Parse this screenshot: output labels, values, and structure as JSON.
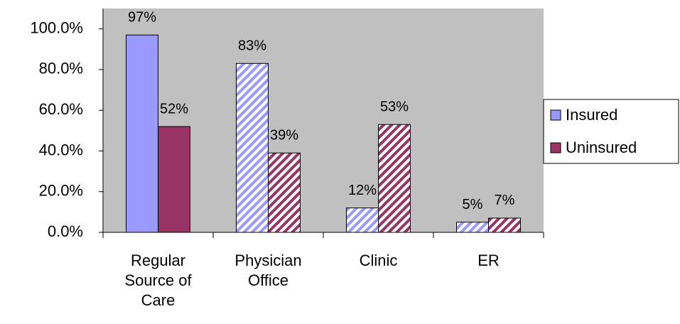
{
  "chart_data": {
    "type": "bar",
    "categories": [
      "Regular Source of Care",
      "Physician Office",
      "Clinic",
      "ER"
    ],
    "series": [
      {
        "name": "Insured",
        "color": "#9999ff",
        "pattern": [
          "solid",
          "hatch",
          "hatch",
          "hatch"
        ],
        "values": [
          97,
          83,
          12,
          5
        ],
        "value_labels": [
          "97%",
          "83%",
          "12%",
          "5%"
        ]
      },
      {
        "name": "Uninsured",
        "color": "#993366",
        "pattern": [
          "solid",
          "hatch",
          "hatch",
          "hatch"
        ],
        "values": [
          52,
          39,
          53,
          7
        ],
        "value_labels": [
          "52%",
          "39%",
          "53%",
          "7%"
        ]
      }
    ],
    "ylim": [
      0,
      110
    ],
    "yticks": [
      {
        "value": 0,
        "label": "0.0%"
      },
      {
        "value": 20,
        "label": "20.0%"
      },
      {
        "value": 40,
        "label": "40.0%"
      },
      {
        "value": 60,
        "label": "60.0%"
      },
      {
        "value": 80,
        "label": "80.0%"
      },
      {
        "value": 100,
        "label": "100.0%"
      }
    ],
    "legend": "right"
  }
}
